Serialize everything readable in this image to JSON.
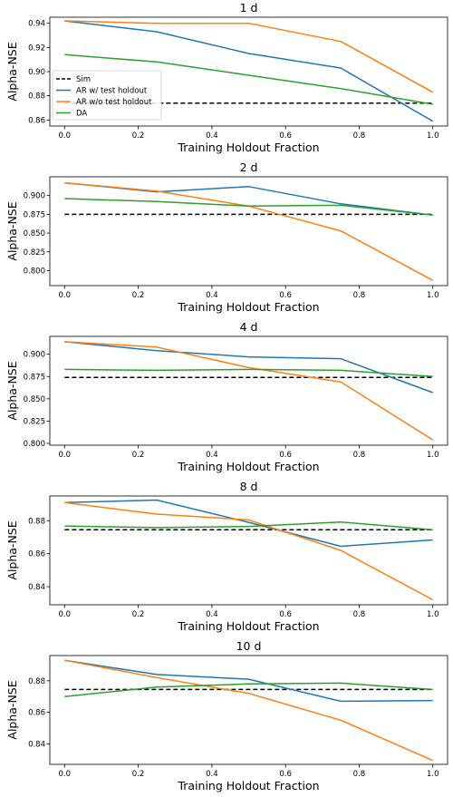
{
  "chart_data": [
    {
      "type": "line",
      "title": "1 d",
      "xlabel": "Training Holdout Fraction",
      "ylabel": "Alpha-NSE",
      "x": [
        0.0,
        0.25,
        0.5,
        0.75,
        1.0
      ],
      "xlim": [
        -0.04,
        1.04
      ],
      "ylim": [
        0.855,
        0.945
      ],
      "xticks": [
        "0.0",
        "0.2",
        "0.4",
        "0.6",
        "0.8",
        "1.0"
      ],
      "yticks": [
        "0.86",
        "0.88",
        "0.90",
        "0.92",
        "0.94"
      ],
      "grid": false,
      "legend_position": "lower-left",
      "series": [
        {
          "name": "Sim",
          "color": "#000000",
          "style": "dashed",
          "values": [
            0.874,
            0.874,
            0.874,
            0.874,
            0.874
          ]
        },
        {
          "name": "AR w/ test holdout",
          "color": "#1f77b4",
          "style": "solid",
          "values": [
            0.942,
            0.933,
            0.915,
            0.903,
            0.859
          ]
        },
        {
          "name": "AR w/o test holdout",
          "color": "#ff7f0e",
          "style": "solid",
          "values": [
            0.942,
            0.94,
            0.94,
            0.925,
            0.883
          ]
        },
        {
          "name": "DA",
          "color": "#2ca02c",
          "style": "solid",
          "values": [
            0.914,
            0.908,
            0.897,
            0.886,
            0.873
          ]
        }
      ]
    },
    {
      "type": "line",
      "title": "2 d",
      "xlabel": "Training Holdout Fraction",
      "ylabel": "Alpha-NSE",
      "x": [
        0.0,
        0.25,
        0.5,
        0.75,
        1.0
      ],
      "xlim": [
        -0.04,
        1.04
      ],
      "ylim": [
        0.78,
        0.925
      ],
      "xticks": [
        "0.0",
        "0.2",
        "0.4",
        "0.6",
        "0.8",
        "1.0"
      ],
      "yticks": [
        "0.800",
        "0.825",
        "0.850",
        "0.875",
        "0.900"
      ],
      "grid": false,
      "series": [
        {
          "name": "Sim",
          "color": "#000000",
          "style": "dashed",
          "values": [
            0.875,
            0.875,
            0.875,
            0.875,
            0.875
          ]
        },
        {
          "name": "AR w/ test holdout",
          "color": "#1f77b4",
          "style": "solid",
          "values": [
            0.917,
            0.905,
            0.912,
            0.889,
            0.874
          ]
        },
        {
          "name": "AR w/o test holdout",
          "color": "#ff7f0e",
          "style": "solid",
          "values": [
            0.917,
            0.906,
            0.886,
            0.853,
            0.787
          ]
        },
        {
          "name": "DA",
          "color": "#2ca02c",
          "style": "solid",
          "values": [
            0.896,
            0.892,
            0.886,
            0.887,
            0.874
          ]
        }
      ]
    },
    {
      "type": "line",
      "title": "4 d",
      "xlabel": "Training Holdout Fraction",
      "ylabel": "Alpha-NSE",
      "x": [
        0.0,
        0.25,
        0.5,
        0.75,
        1.0
      ],
      "xlim": [
        -0.04,
        1.04
      ],
      "ylim": [
        0.798,
        0.92
      ],
      "xticks": [
        "0.0",
        "0.2",
        "0.4",
        "0.6",
        "0.8",
        "1.0"
      ],
      "yticks": [
        "0.800",
        "0.825",
        "0.850",
        "0.875",
        "0.900"
      ],
      "grid": false,
      "series": [
        {
          "name": "Sim",
          "color": "#000000",
          "style": "dashed",
          "values": [
            0.874,
            0.874,
            0.874,
            0.874,
            0.874
          ]
        },
        {
          "name": "AR w/ test holdout",
          "color": "#1f77b4",
          "style": "solid",
          "values": [
            0.914,
            0.904,
            0.897,
            0.895,
            0.857
          ]
        },
        {
          "name": "AR w/o test holdout",
          "color": "#ff7f0e",
          "style": "solid",
          "values": [
            0.914,
            0.908,
            0.885,
            0.869,
            0.804
          ]
        },
        {
          "name": "DA",
          "color": "#2ca02c",
          "style": "solid",
          "values": [
            0.883,
            0.882,
            0.883,
            0.882,
            0.875
          ]
        }
      ]
    },
    {
      "type": "line",
      "title": "8 d",
      "xlabel": "Training Holdout Fraction",
      "ylabel": "Alpha-NSE",
      "x": [
        0.0,
        0.25,
        0.5,
        0.75,
        1.0
      ],
      "xlim": [
        -0.04,
        1.04
      ],
      "ylim": [
        0.829,
        0.895
      ],
      "xticks": [
        "0.0",
        "0.2",
        "0.4",
        "0.6",
        "0.8",
        "1.0"
      ],
      "yticks": [
        "0.84",
        "0.86",
        "0.88"
      ],
      "grid": false,
      "series": [
        {
          "name": "Sim",
          "color": "#000000",
          "style": "dashed",
          "values": [
            0.8745,
            0.8745,
            0.8745,
            0.8745,
            0.8745
          ]
        },
        {
          "name": "AR w/ test holdout",
          "color": "#1f77b4",
          "style": "solid",
          "values": [
            0.891,
            0.8925,
            0.879,
            0.8645,
            0.8683
          ]
        },
        {
          "name": "AR w/o test holdout",
          "color": "#ff7f0e",
          "style": "solid",
          "values": [
            0.891,
            0.884,
            0.8805,
            0.862,
            0.832
          ]
        },
        {
          "name": "DA",
          "color": "#2ca02c",
          "style": "solid",
          "values": [
            0.8768,
            0.8758,
            0.8765,
            0.8792,
            0.8745
          ]
        }
      ]
    },
    {
      "type": "line",
      "title": "10 d",
      "xlabel": "Training Holdout Fraction",
      "ylabel": "Alpha-NSE",
      "x": [
        0.0,
        0.25,
        0.5,
        0.75,
        1.0
      ],
      "xlim": [
        -0.04,
        1.04
      ],
      "ylim": [
        0.827,
        0.896
      ],
      "xticks": [
        "0.0",
        "0.2",
        "0.4",
        "0.6",
        "0.8",
        "1.0"
      ],
      "yticks": [
        "0.84",
        "0.86",
        "0.88"
      ],
      "grid": false,
      "series": [
        {
          "name": "Sim",
          "color": "#000000",
          "style": "dashed",
          "values": [
            0.8745,
            0.8745,
            0.8745,
            0.8745,
            0.8745
          ]
        },
        {
          "name": "AR w/ test holdout",
          "color": "#1f77b4",
          "style": "solid",
          "values": [
            0.893,
            0.884,
            0.881,
            0.867,
            0.8675
          ]
        },
        {
          "name": "AR w/o test holdout",
          "color": "#ff7f0e",
          "style": "solid",
          "values": [
            0.893,
            0.882,
            0.872,
            0.855,
            0.8295
          ]
        },
        {
          "name": "DA",
          "color": "#2ca02c",
          "style": "solid",
          "values": [
            0.87,
            0.876,
            0.878,
            0.8785,
            0.8745
          ]
        }
      ]
    }
  ]
}
